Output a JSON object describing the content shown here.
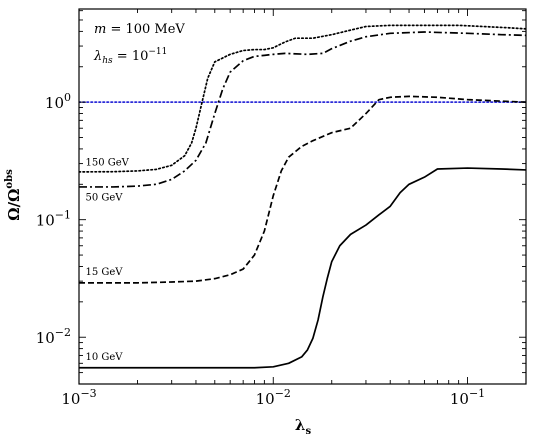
{
  "chart_data": {
    "type": "line",
    "title": "",
    "xlabel": "λs",
    "ylabel": "Ω/Ωobs",
    "xscale": "log",
    "yscale": "log",
    "xlim": [
      0.001,
      0.2
    ],
    "ylim": [
      0.004,
      6.2
    ],
    "grid": false,
    "x_ticks": [
      {
        "value": 0.001,
        "base": "10",
        "exp": "−3"
      },
      {
        "value": 0.01,
        "base": "10",
        "exp": "−2"
      },
      {
        "value": 0.1,
        "base": "10",
        "exp": "−1"
      }
    ],
    "y_ticks": [
      {
        "value": 0.01,
        "base": "10",
        "exp": "−2"
      },
      {
        "value": 0.1,
        "base": "10",
        "exp": "−1"
      },
      {
        "value": 1,
        "base": "10",
        "exp": "0"
      }
    ],
    "annotations": [
      {
        "text": "m = 100 MeV"
      },
      {
        "text": "λhs = 10−11"
      }
    ],
    "reference_line": {
      "y": 1.0,
      "color": "#2a2ad8",
      "style": "dotted"
    },
    "series": [
      {
        "name": "150 GeV",
        "style": "dotted",
        "points": [
          [
            0.001,
            0.255
          ],
          [
            0.0015,
            0.256
          ],
          [
            0.002,
            0.26
          ],
          [
            0.0025,
            0.268
          ],
          [
            0.003,
            0.29
          ],
          [
            0.0035,
            0.35
          ],
          [
            0.0038,
            0.45
          ],
          [
            0.004,
            0.6
          ],
          [
            0.0043,
            1.0
          ],
          [
            0.0046,
            1.6
          ],
          [
            0.005,
            2.2
          ],
          [
            0.006,
            2.55
          ],
          [
            0.007,
            2.75
          ],
          [
            0.008,
            2.8
          ],
          [
            0.009,
            2.8
          ],
          [
            0.01,
            2.9
          ],
          [
            0.0115,
            3.25
          ],
          [
            0.013,
            3.5
          ],
          [
            0.016,
            3.5
          ],
          [
            0.02,
            3.75
          ],
          [
            0.025,
            4.1
          ],
          [
            0.03,
            4.4
          ],
          [
            0.04,
            4.5
          ],
          [
            0.06,
            4.5
          ],
          [
            0.09,
            4.5
          ],
          [
            0.12,
            4.4
          ],
          [
            0.16,
            4.3
          ],
          [
            0.2,
            4.2
          ]
        ]
      },
      {
        "name": "50 GeV",
        "style": "dashdot",
        "points": [
          [
            0.001,
            0.19
          ],
          [
            0.0015,
            0.19
          ],
          [
            0.002,
            0.193
          ],
          [
            0.0025,
            0.2
          ],
          [
            0.003,
            0.22
          ],
          [
            0.0035,
            0.26
          ],
          [
            0.004,
            0.32
          ],
          [
            0.0045,
            0.45
          ],
          [
            0.005,
            0.8
          ],
          [
            0.0055,
            1.3
          ],
          [
            0.006,
            1.8
          ],
          [
            0.007,
            2.25
          ],
          [
            0.008,
            2.45
          ],
          [
            0.009,
            2.5
          ],
          [
            0.01,
            2.55
          ],
          [
            0.0115,
            2.6
          ],
          [
            0.015,
            2.55
          ],
          [
            0.018,
            2.6
          ],
          [
            0.02,
            2.85
          ],
          [
            0.025,
            3.3
          ],
          [
            0.03,
            3.6
          ],
          [
            0.04,
            3.85
          ],
          [
            0.06,
            3.95
          ],
          [
            0.1,
            3.85
          ],
          [
            0.15,
            3.75
          ],
          [
            0.2,
            3.7
          ]
        ]
      },
      {
        "name": "15 GeV",
        "style": "dashed",
        "points": [
          [
            0.001,
            0.029
          ],
          [
            0.002,
            0.029
          ],
          [
            0.003,
            0.0295
          ],
          [
            0.004,
            0.03
          ],
          [
            0.005,
            0.0315
          ],
          [
            0.006,
            0.034
          ],
          [
            0.007,
            0.038
          ],
          [
            0.008,
            0.05
          ],
          [
            0.009,
            0.08
          ],
          [
            0.01,
            0.16
          ],
          [
            0.011,
            0.26
          ],
          [
            0.012,
            0.34
          ],
          [
            0.014,
            0.42
          ],
          [
            0.016,
            0.47
          ],
          [
            0.02,
            0.55
          ],
          [
            0.025,
            0.6
          ],
          [
            0.03,
            0.8
          ],
          [
            0.035,
            1.05
          ],
          [
            0.04,
            1.1
          ],
          [
            0.05,
            1.12
          ],
          [
            0.07,
            1.1
          ],
          [
            0.1,
            1.05
          ],
          [
            0.15,
            1.02
          ],
          [
            0.2,
            1.0
          ]
        ]
      },
      {
        "name": "10 GeV",
        "style": "solid",
        "points": [
          [
            0.001,
            0.0055
          ],
          [
            0.004,
            0.0055
          ],
          [
            0.008,
            0.0055
          ],
          [
            0.01,
            0.0056
          ],
          [
            0.012,
            0.006
          ],
          [
            0.014,
            0.0068
          ],
          [
            0.015,
            0.0078
          ],
          [
            0.016,
            0.0098
          ],
          [
            0.017,
            0.014
          ],
          [
            0.018,
            0.022
          ],
          [
            0.019,
            0.032
          ],
          [
            0.02,
            0.044
          ],
          [
            0.022,
            0.06
          ],
          [
            0.025,
            0.075
          ],
          [
            0.03,
            0.09
          ],
          [
            0.035,
            0.11
          ],
          [
            0.04,
            0.13
          ],
          [
            0.045,
            0.17
          ],
          [
            0.05,
            0.2
          ],
          [
            0.06,
            0.23
          ],
          [
            0.07,
            0.27
          ],
          [
            0.1,
            0.275
          ],
          [
            0.15,
            0.27
          ],
          [
            0.2,
            0.265
          ]
        ]
      }
    ],
    "label_positions": [
      {
        "series": "150 GeV",
        "x": 0.00108,
        "y": 0.29
      },
      {
        "series": "50 GeV",
        "x": 0.00108,
        "y": 0.145
      },
      {
        "series": "15 GeV",
        "x": 0.00108,
        "y": 0.034
      },
      {
        "series": "10 GeV",
        "x": 0.00108,
        "y": 0.0064
      }
    ]
  }
}
